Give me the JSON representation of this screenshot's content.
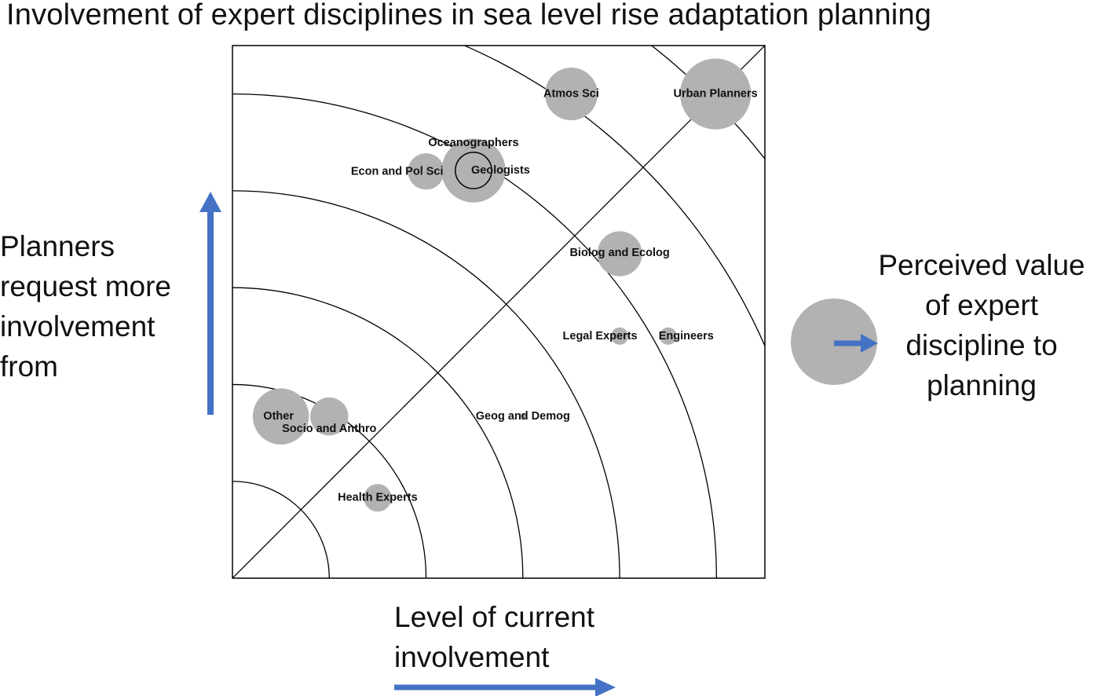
{
  "chart_data": {
    "type": "scatter",
    "title": "Involvement of expert disciplines in sea level rise adaptation planning",
    "xlabel": "Level of current involvement",
    "ylabel": "Planners request more involvement from",
    "size_legend": "Perceived value of expert discipline to planning",
    "xlim": [
      0,
      5.5
    ],
    "ylim": [
      0,
      5.5
    ],
    "points": [
      {
        "label": "Urban Planners",
        "x": 4.99,
        "y": 5.0,
        "value": 0.82
      },
      {
        "label": "Atmos Sci",
        "x": 3.5,
        "y": 5.0,
        "value": 0.61
      },
      {
        "label": "Oceanographers",
        "x": 2.49,
        "y": 4.21,
        "value": 0.74
      },
      {
        "label": "Geologists",
        "x": 2.49,
        "y": 4.21,
        "value": 0.42
      },
      {
        "label": "Econ and Pol Sci",
        "x": 2.0,
        "y": 4.2,
        "value": 0.42
      },
      {
        "label": "Biolog and Ecolog",
        "x": 4.0,
        "y": 3.35,
        "value": 0.52
      },
      {
        "label": "Legal Experts",
        "x": 4.0,
        "y": 2.5,
        "value": 0.2
      },
      {
        "label": "Engineers",
        "x": 4.5,
        "y": 2.5,
        "value": 0.2
      },
      {
        "label": "Geog and Demog",
        "x": 3.0,
        "y": 1.67,
        "value": 0.08
      },
      {
        "label": "Other",
        "x": 0.5,
        "y": 1.67,
        "value": 0.65
      },
      {
        "label": "Socio and Anthro",
        "x": 1.0,
        "y": 1.67,
        "value": 0.44
      },
      {
        "label": "Health Experts",
        "x": 1.5,
        "y": 0.83,
        "value": 0.32
      }
    ],
    "rings": [
      1,
      2,
      3,
      4,
      5,
      6,
      7
    ],
    "grid": false,
    "legend_position": "right",
    "colors": {
      "bubble": "#b2b2b2",
      "arrow": "#4472c4",
      "line": "#000000"
    }
  }
}
